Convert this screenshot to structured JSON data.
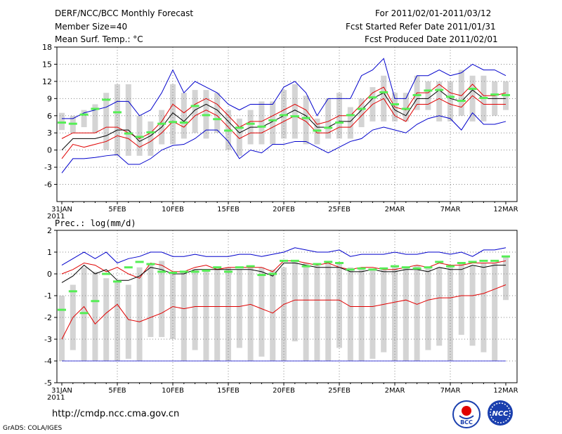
{
  "header": {
    "title": "DERF/NCC/BCC Monthly Forecast",
    "member_size": "Member Size=40",
    "variable": "Mean Surf. Temp.: °C",
    "period": "For 2011/02/01-2011/03/12",
    "start_date": "Fcst Started Refer Date 2011/01/31",
    "produced_date": "Fcst Produced Date 2011/02/01"
  },
  "footer": {
    "url": "http://cmdp.ncc.cma.gov.cn",
    "credit": "GrADS: COLA/IGES",
    "logo_bcc_text": "BCC",
    "logo_ncc_text": "NCC"
  },
  "colors": {
    "blue": "#0000cc",
    "red": "#e00000",
    "black": "#000000",
    "green": "#55ee55",
    "gray": "#d4d4d4",
    "grid": "#888888"
  },
  "chart_data": [
    {
      "type": "line",
      "title": "Mean Surf. Temp.: °C",
      "ylim": [
        -9,
        18
      ],
      "yticks": [
        -6,
        -3,
        0,
        3,
        6,
        9,
        12,
        15,
        18
      ],
      "ytick_labels": [
        "-6",
        "-3",
        "0",
        "3",
        "6",
        "9",
        "12",
        "15",
        "18"
      ],
      "xtick_days": [
        0,
        5,
        10,
        15,
        20,
        25,
        30,
        35,
        40
      ],
      "xtick_labels": [
        "31JAN",
        "5FEB",
        "10FEB",
        "15FEB",
        "20FEB",
        "25FEB",
        "2MAR",
        "7MAR",
        "12MAR"
      ],
      "xtick_year": "2011",
      "days": [
        0,
        1,
        2,
        3,
        4,
        5,
        6,
        7,
        8,
        9,
        10,
        11,
        12,
        13,
        14,
        15,
        16,
        17,
        18,
        19,
        20,
        21,
        22,
        23,
        24,
        25,
        26,
        27,
        28,
        29,
        30,
        31,
        32,
        33,
        34,
        35,
        36,
        37,
        38,
        39,
        40
      ],
      "series": [
        {
          "name": "ensemble-max",
          "color": "blue",
          "values": [
            -4,
            -1.5,
            -1.5,
            -1.3,
            -1,
            -0.8,
            -2.5,
            -2.5,
            -1.5,
            0,
            0.8,
            1,
            2,
            3.5,
            3.5,
            1.5,
            -1.5,
            0,
            -0.5,
            1,
            1,
            1.5,
            1.5,
            0.5,
            -0.5,
            0.5,
            1.5,
            2,
            3.5,
            4,
            3.5,
            3,
            4.5,
            5.5,
            6,
            5.5,
            3.5,
            6.5,
            4.5,
            4.5,
            5
          ]
        },
        {
          "name": "ensemble-top",
          "color": "blue",
          "values": [
            5.5,
            5.5,
            6.5,
            7,
            7.5,
            8.5,
            8.5,
            6,
            7,
            10,
            14,
            10,
            12,
            11,
            10,
            8,
            7,
            8,
            8,
            8,
            11,
            12,
            10,
            6,
            9,
            9,
            9,
            13,
            14,
            16,
            9,
            9,
            13,
            13,
            14,
            13,
            13.5,
            15,
            14,
            14,
            13
          ]
        },
        {
          "name": "upper-red",
          "color": "red",
          "values": [
            2,
            3,
            3,
            3,
            4,
            4,
            3,
            2,
            3,
            5,
            8,
            6.5,
            8,
            9,
            8,
            6,
            4,
            5,
            5,
            6,
            7,
            8,
            7,
            4.5,
            5,
            6,
            6,
            8,
            10,
            11,
            7.5,
            7,
            10,
            10,
            11.5,
            10,
            9.5,
            11.5,
            9.5,
            9.5,
            10
          ]
        },
        {
          "name": "ensemble-mean",
          "color": "black",
          "values": [
            0,
            2,
            2,
            2,
            2.5,
            3.5,
            3.5,
            1.5,
            2.5,
            4,
            6.5,
            5,
            7,
            8,
            7,
            5,
            3,
            4,
            4,
            5,
            6,
            7,
            6,
            4,
            4,
            5,
            5,
            7,
            9,
            10,
            7,
            6,
            9,
            9,
            10.5,
            9,
            8.5,
            10.5,
            9,
            9,
            9
          ]
        },
        {
          "name": "lower-red",
          "color": "red",
          "values": [
            -1.5,
            1,
            0.5,
            1,
            1.5,
            2.5,
            2,
            0.5,
            1.5,
            3,
            5,
            4,
            6,
            7,
            6,
            4,
            2,
            3,
            3,
            4,
            5,
            6,
            5,
            3,
            3,
            4,
            4,
            6,
            8,
            9,
            6,
            5,
            8,
            8,
            9,
            8,
            7.5,
            9.5,
            8,
            8,
            8
          ]
        }
      ],
      "green_marks": [
        4.8,
        4.6,
        6.2,
        7.2,
        8.8,
        6.6,
        2.9,
        2.3,
        3.1,
        4.6,
        4.9,
        4.8,
        7.7,
        6.1,
        5.4,
        3.4,
        3.9,
        4.6,
        4.1,
        5.2,
        6.1,
        5.9,
        5.6,
        3.4,
        3.9,
        4.8,
        6.1,
        7.2,
        9.2,
        10.1,
        8.0,
        7.2,
        9.6,
        10.4,
        10.5,
        9.3,
        8.6,
        10.7,
        9.1,
        9.7,
        9.6
      ],
      "gray_bars": [
        [
          3.5,
          6.5
        ],
        [
          3,
          6
        ],
        [
          4,
          7
        ],
        [
          3,
          8
        ],
        [
          0,
          10
        ],
        [
          -1,
          11.5
        ],
        [
          -1,
          11.5
        ],
        [
          -1,
          6
        ],
        [
          -1,
          5
        ],
        [
          1,
          7
        ],
        [
          1,
          11.5
        ],
        [
          2,
          10
        ],
        [
          3,
          10.5
        ],
        [
          2,
          10.5
        ],
        [
          3,
          10
        ],
        [
          0,
          7
        ],
        [
          -1,
          5.5
        ],
        [
          1,
          7
        ],
        [
          1,
          8.5
        ],
        [
          1,
          8.5
        ],
        [
          2,
          10.5
        ],
        [
          2,
          11.5
        ],
        [
          1,
          9.5
        ],
        [
          1,
          5.5
        ],
        [
          2,
          9
        ],
        [
          2,
          10
        ],
        [
          2,
          7.5
        ],
        [
          4,
          9
        ],
        [
          5,
          11
        ],
        [
          5,
          13
        ],
        [
          5,
          10
        ],
        [
          5,
          10
        ],
        [
          7,
          13
        ],
        [
          7,
          12
        ],
        [
          5,
          12
        ],
        [
          5,
          12
        ],
        [
          6,
          14
        ],
        [
          5,
          13
        ],
        [
          5,
          13
        ],
        [
          6,
          12
        ],
        [
          7,
          12
        ]
      ]
    },
    {
      "type": "line",
      "title": "Prec.: log(mm/d)",
      "ylim": [
        -5,
        2
      ],
      "yticks": [
        -5,
        -4,
        -3,
        -2,
        -1,
        0,
        1,
        2
      ],
      "ytick_labels": [
        "-5",
        "-4",
        "-3",
        "-2",
        "-1",
        "0",
        "1",
        "2"
      ],
      "xtick_days": [
        0,
        5,
        10,
        15,
        20,
        25,
        30,
        35,
        40
      ],
      "xtick_labels": [
        "31JAN",
        "5FEB",
        "10FEB",
        "15FEB",
        "20FEB",
        "25FEB",
        "2MAR",
        "7MAR",
        "12MAR"
      ],
      "xtick_year": "2011",
      "days": [
        0,
        1,
        2,
        3,
        4,
        5,
        6,
        7,
        8,
        9,
        10,
        11,
        12,
        13,
        14,
        15,
        16,
        17,
        18,
        19,
        20,
        21,
        22,
        23,
        24,
        25,
        26,
        27,
        28,
        29,
        30,
        31,
        32,
        33,
        34,
        35,
        36,
        37,
        38,
        39,
        40
      ],
      "series": [
        {
          "name": "ensemble-top",
          "color": "blue",
          "values": [
            0.4,
            0.7,
            1.0,
            0.7,
            1.0,
            0.5,
            0.7,
            0.8,
            1.0,
            1.0,
            0.8,
            0.8,
            0.9,
            0.8,
            0.8,
            0.8,
            0.9,
            0.9,
            0.8,
            0.9,
            1.0,
            1.2,
            1.1,
            1.0,
            1.0,
            1.1,
            0.8,
            0.9,
            0.9,
            0.9,
            1.0,
            0.9,
            0.9,
            1.0,
            1.0,
            0.9,
            1.0,
            0.8,
            1.1,
            1.1,
            1.2
          ]
        },
        {
          "name": "upper-red",
          "color": "red",
          "values": [
            0.0,
            0.2,
            0.5,
            0.4,
            0.1,
            0.3,
            0.0,
            -0.2,
            0.5,
            0.4,
            0.1,
            0.1,
            0.3,
            0.4,
            0.2,
            0.3,
            0.3,
            0.3,
            0.3,
            0.1,
            0.6,
            0.6,
            0.5,
            0.4,
            0.5,
            0.3,
            0.2,
            0.3,
            0.3,
            0.2,
            0.2,
            0.3,
            0.4,
            0.3,
            0.5,
            0.4,
            0.4,
            0.5,
            0.5,
            0.5,
            0.6
          ]
        },
        {
          "name": "ensemble-mean",
          "color": "black",
          "values": [
            -0.4,
            -0.1,
            0.4,
            0.0,
            0.2,
            -0.3,
            -0.3,
            -0.1,
            0.3,
            0.2,
            0.0,
            0.0,
            0.2,
            0.2,
            0.2,
            0.2,
            0.2,
            0.2,
            0.1,
            -0.1,
            0.5,
            0.5,
            0.4,
            0.3,
            0.3,
            0.3,
            0.1,
            0.1,
            0.2,
            0.1,
            0.1,
            0.2,
            0.2,
            0.1,
            0.3,
            0.2,
            0.2,
            0.4,
            0.3,
            0.4,
            0.4
          ]
        },
        {
          "name": "lower-red",
          "color": "red",
          "values": [
            -3.0,
            -2.0,
            -1.5,
            -2.3,
            -1.8,
            -1.4,
            -2.1,
            -2.2,
            -2.0,
            -1.8,
            -1.5,
            -1.6,
            -1.5,
            -1.5,
            -1.5,
            -1.5,
            -1.5,
            -1.4,
            -1.6,
            -1.8,
            -1.4,
            -1.2,
            -1.2,
            -1.2,
            -1.2,
            -1.2,
            -1.5,
            -1.5,
            -1.5,
            -1.4,
            -1.3,
            -1.2,
            -1.4,
            -1.2,
            -1.1,
            -1.1,
            -1.0,
            -1.0,
            -0.9,
            -0.7,
            -0.5
          ]
        },
        {
          "name": "ensemble-min",
          "color": "blue",
          "values": [
            -4,
            -4,
            -4,
            -4,
            -4,
            -4,
            -4,
            -4,
            -4,
            -4,
            -4,
            -4,
            -4,
            -4,
            -4,
            -4,
            -4,
            -4,
            -4,
            -4,
            -4,
            -4,
            -4,
            -4,
            -4,
            -4,
            -4,
            -4,
            -4,
            -4,
            -4,
            -4,
            -4,
            -4,
            -4,
            -4,
            -4,
            -4,
            -4,
            -4,
            -4
          ]
        }
      ],
      "green_marks": [
        -1.65,
        -0.8,
        -1.8,
        -1.25,
        0.0,
        -0.35,
        0.3,
        0.55,
        0.45,
        0.1,
        0.05,
        0.1,
        0.1,
        0.15,
        0.3,
        0.1,
        0.3,
        0.35,
        -0.05,
        0.0,
        0.6,
        0.6,
        0.35,
        0.45,
        0.55,
        0.5,
        0.2,
        0.25,
        0.2,
        0.25,
        0.35,
        0.3,
        0.25,
        0.3,
        0.55,
        0.35,
        0.5,
        0.55,
        0.6,
        0.6,
        0.8
      ],
      "gray_bars": [
        [
          -4,
          -1
        ],
        [
          -3.5,
          -0.5
        ],
        [
          -4,
          0.3
        ],
        [
          -4,
          0.1
        ],
        [
          -4,
          -0.2
        ],
        [
          -4,
          -0.3
        ],
        [
          -3.9,
          -0.5
        ],
        [
          -4,
          0.3
        ],
        [
          -2.9,
          0.5
        ],
        [
          -2.9,
          0.6
        ],
        [
          -3.0,
          0.0
        ],
        [
          -4,
          0.1
        ],
        [
          -3.5,
          0.2
        ],
        [
          -4,
          0.2
        ],
        [
          -4,
          0.3
        ],
        [
          -4,
          0.3
        ],
        [
          -3.4,
          0.2
        ],
        [
          -4,
          0.3
        ],
        [
          -3.8,
          0.3
        ],
        [
          -4,
          0.2
        ],
        [
          -4,
          0.3
        ],
        [
          -3.1,
          0.6
        ],
        [
          -4,
          0.5
        ],
        [
          -4,
          0.5
        ],
        [
          -4,
          0.6
        ],
        [
          -3.4,
          0.5
        ],
        [
          -4,
          0.3
        ],
        [
          -4,
          0.3
        ],
        [
          -3.9,
          0.2
        ],
        [
          -3.6,
          0.2
        ],
        [
          -4,
          0.3
        ],
        [
          -4,
          0.3
        ],
        [
          -4,
          0.4
        ],
        [
          -3.5,
          0.3
        ],
        [
          -3.3,
          0.3
        ],
        [
          -4,
          0.3
        ],
        [
          -2.8,
          0.5
        ],
        [
          -3.3,
          0.4
        ],
        [
          -3.6,
          0.5
        ],
        [
          -4,
          0.5
        ],
        [
          -1.2,
          0.8
        ]
      ]
    }
  ]
}
